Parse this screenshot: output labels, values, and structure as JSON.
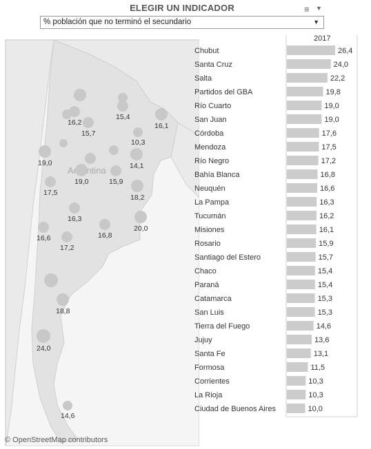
{
  "header": {
    "title": "ELEGIR UN INDICADOR",
    "selected_indicator": "% población que no terminó el secundario",
    "menu_icon": "hamburger-menu-icon",
    "caret_icon": "caret-down-icon"
  },
  "map": {
    "place_label": "Argentina",
    "credit": "© OpenStreetMap contributors"
  },
  "colors": {
    "bar": "#cccccc",
    "circle": "#c8c8c8",
    "land": "#e6e6e6",
    "water": "#f5f5f5"
  },
  "chart_data": {
    "type": "bar",
    "orientation": "horizontal",
    "column_header": "2017",
    "categories": [
      "Chubut",
      "Santa Cruz",
      "Salta",
      "Partidos del GBA",
      "Río Cuarto",
      "San Juan",
      "Córdoba",
      "Mendoza",
      "Río Negro",
      "Bahía Blanca",
      "Neuquén",
      "La Pampa",
      "Tucumán",
      "Misiones",
      "Rosario",
      "Santiago del Estero",
      "Chaco",
      "Paraná",
      "Catamarca",
      "San Luis",
      "Tierra del Fuego",
      "Jujuy",
      "Santa Fe",
      "Formosa",
      "Corrientes",
      "La Rioja",
      "Ciudad de Buenos Aires"
    ],
    "values_label": [
      "26,4",
      "24,0",
      "22,2",
      "19,8",
      "19,0",
      "19,0",
      "17,6",
      "17,5",
      "17,2",
      "16,8",
      "16,6",
      "16,3",
      "16,2",
      "16,1",
      "15,9",
      "15,7",
      "15,4",
      "15,4",
      "15,3",
      "15,3",
      "14,6",
      "13,6",
      "13,1",
      "11,5",
      "10,3",
      "10,3",
      "10,0"
    ],
    "values": [
      26.4,
      24.0,
      22.2,
      19.8,
      19.0,
      19.0,
      17.6,
      17.5,
      17.2,
      16.8,
      16.6,
      16.3,
      16.2,
      16.1,
      15.9,
      15.7,
      15.4,
      15.4,
      15.3,
      15.3,
      14.6,
      13.6,
      13.1,
      11.5,
      10.3,
      10.3,
      10.0
    ],
    "map_labels": [
      "15,4",
      "16,2",
      "15,7",
      "16,1",
      "10,3",
      "19,0",
      "14,1",
      "19,0",
      "15,9",
      "17,5",
      "18,2",
      "16,3",
      "20,0",
      "16,6",
      "17,2",
      "16,8",
      "18,8",
      "24,0",
      "14,6"
    ]
  }
}
